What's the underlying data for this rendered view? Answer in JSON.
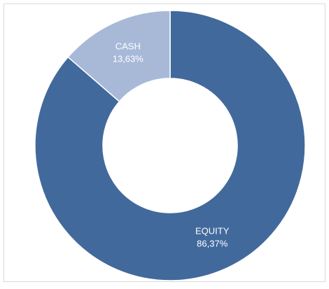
{
  "chart_data": {
    "type": "donut",
    "categories": [
      "EQUITY",
      "CASH"
    ],
    "values": [
      86.37,
      13.63
    ],
    "value_labels": [
      "86,37%",
      "13,63%"
    ],
    "colors": [
      "#41699c",
      "#a8b9d8"
    ]
  }
}
